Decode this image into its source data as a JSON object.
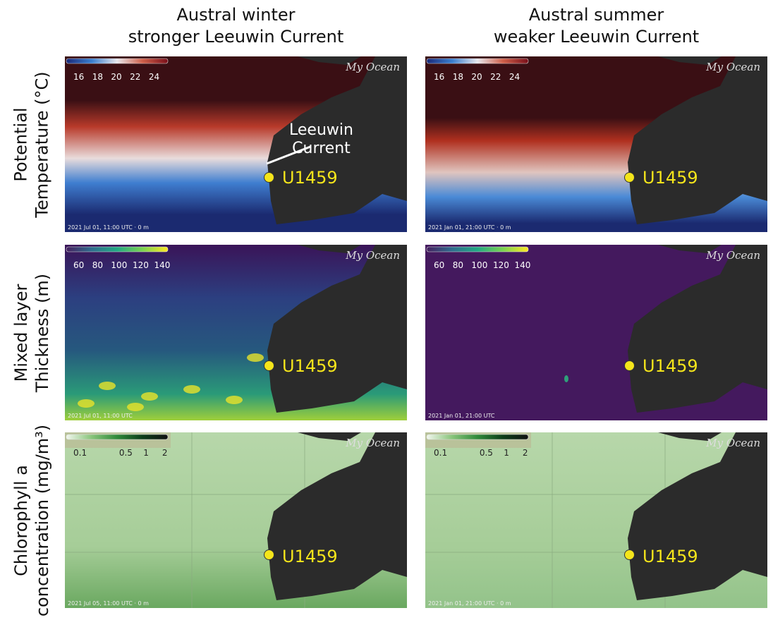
{
  "columns": [
    {
      "line1": "Austral winter",
      "line2": "stronger Leeuwin Current"
    },
    {
      "line1": "Austral summer",
      "line2": "weaker Leeuwin Current"
    }
  ],
  "rows": [
    {
      "line1": "Potential",
      "line2": "Temperature (°C)"
    },
    {
      "line1": "Mixed layer",
      "line2": "Thickness (m)"
    },
    {
      "line1": "Chlorophyll a",
      "line2": "concentration (mg/m³)"
    }
  ],
  "colorbars": {
    "temperature": {
      "ticks": "16   18   20   22   24",
      "colors": [
        "#1a2a7a",
        "#3a7fd0",
        "#e8e8ee",
        "#d0604a",
        "#7a0f1a"
      ]
    },
    "mlt": {
      "ticks": "60   80   100  120  140",
      "colors": [
        "#46205f",
        "#2f6c8e",
        "#22a884",
        "#7ad151",
        "#fde725"
      ]
    },
    "chl": {
      "ticks": "0.1            0.5    1     2",
      "colors": [
        "#f2f7ee",
        "#88c47a",
        "#2f8a3a",
        "#0b3d18",
        "#111111"
      ]
    }
  },
  "logo": "My Ocean",
  "site_label": "U1459",
  "annotation": {
    "line1": "Leeuwin",
    "line2": "Current"
  },
  "timestamps": {
    "temp_winter": "2021 Jul 01, 11:00 UTC · 0 m",
    "temp_summer": "2021 Jan 01, 21:00 UTC · 0 m",
    "mlt_winter": "2021 Jul 01, 11:00 UTC",
    "mlt_summer": "2021 Jan 01, 21:00 UTC",
    "chl_winter": "2021 Jul 05, 11:00 UTC · 0 m",
    "chl_summer": "2021 Jan 01, 21:00 UTC · 0 m"
  }
}
